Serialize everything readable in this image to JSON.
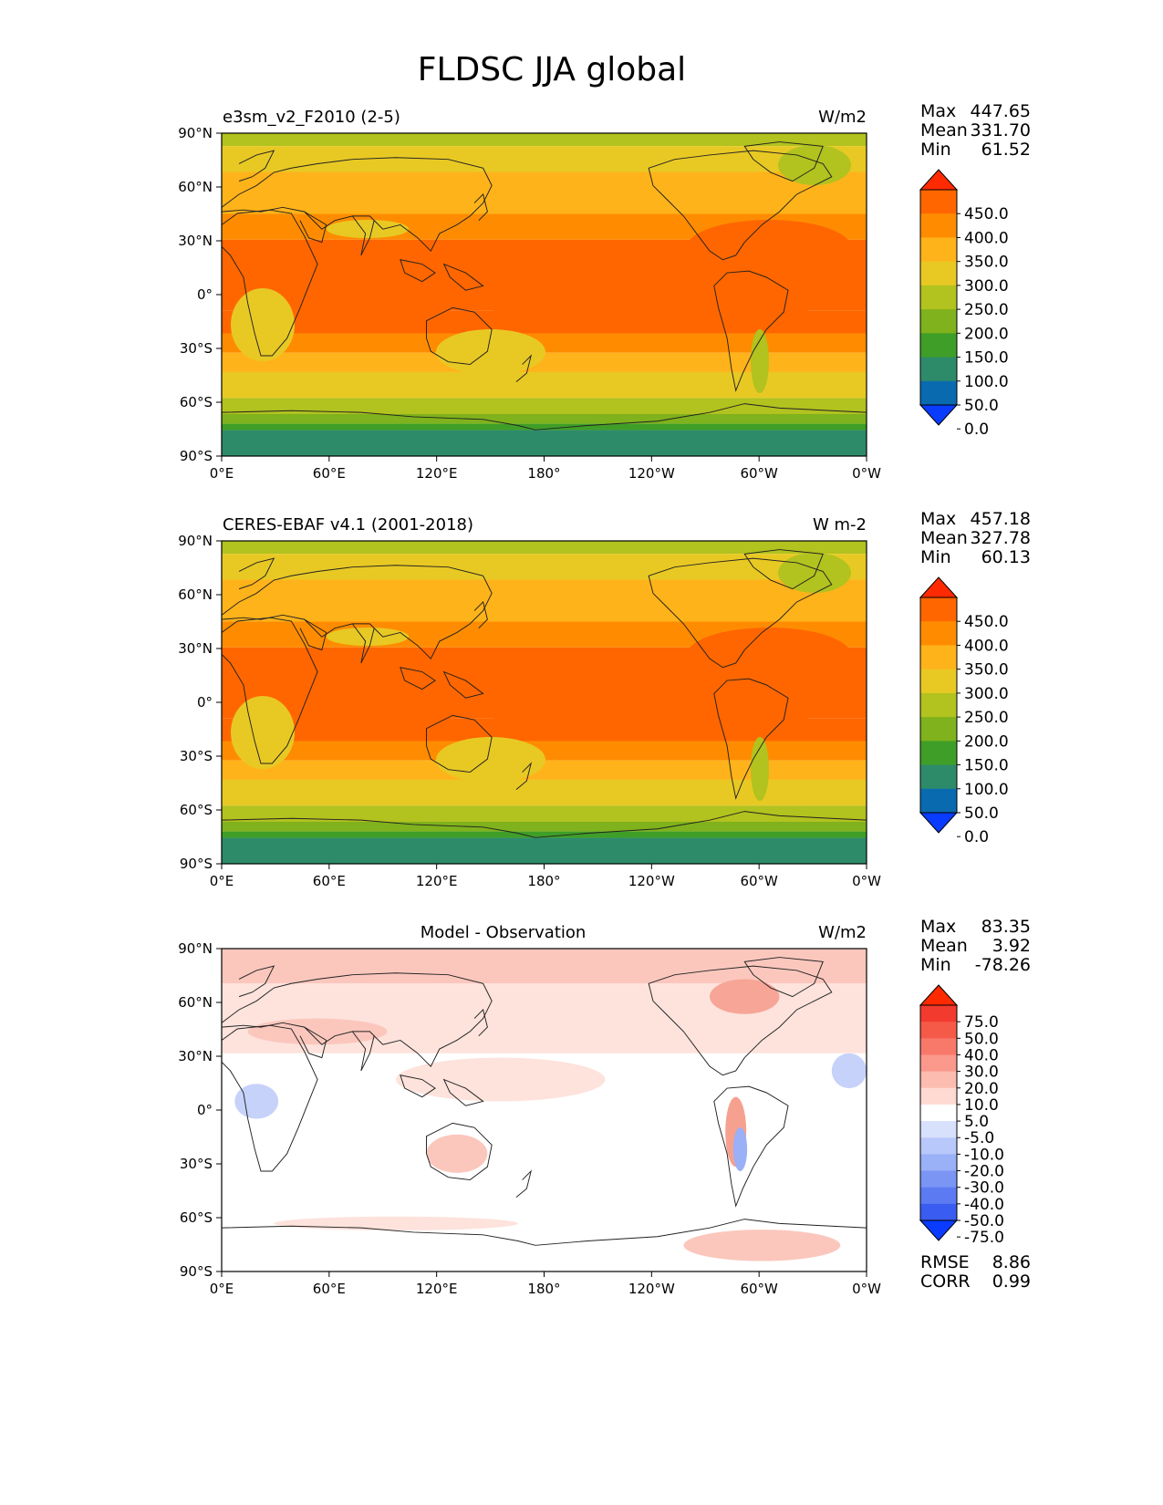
{
  "title": "FLDSC JJA global",
  "x_ticks": [
    "0°E",
    "60°E",
    "120°E",
    "180°",
    "120°W",
    "60°W",
    "0°W"
  ],
  "y_ticks": [
    "90°N",
    "60°N",
    "30°N",
    "0°",
    "30°S",
    "60°S",
    "90°S"
  ],
  "panels": [
    {
      "name": "e3sm_v2_F2010 (2-5)",
      "center_title": "",
      "units": "W/m2",
      "stats": [
        [
          "Max",
          "447.65"
        ],
        [
          "Mean",
          "331.70"
        ],
        [
          "Min",
          "61.52"
        ]
      ],
      "colorbar": {
        "labels": [
          "450.0",
          "400.0",
          "350.0",
          "300.0",
          "250.0",
          "200.0",
          "150.0",
          "100.0",
          "50.0",
          "0.0"
        ],
        "colors": [
          "#ff2a00",
          "#ff6600",
          "#ff8c00",
          "#ffb31a",
          "#e8c924",
          "#b2c21e",
          "#7fb21c",
          "#3f9e27",
          "#2e8b6a",
          "#0a6ab0",
          "#0a3cff"
        ]
      },
      "footer": []
    },
    {
      "name": "CERES-EBAF v4.1 (2001-2018)",
      "center_title": "",
      "units": "W m-2",
      "stats": [
        [
          "Max",
          "457.18"
        ],
        [
          "Mean",
          "327.78"
        ],
        [
          "Min",
          "60.13"
        ]
      ],
      "colorbar": {
        "labels": [
          "450.0",
          "400.0",
          "350.0",
          "300.0",
          "250.0",
          "200.0",
          "150.0",
          "100.0",
          "50.0",
          "0.0"
        ],
        "colors": [
          "#ff2a00",
          "#ff6600",
          "#ff8c00",
          "#ffb31a",
          "#e8c924",
          "#b2c21e",
          "#7fb21c",
          "#3f9e27",
          "#2e8b6a",
          "#0a6ab0",
          "#0a3cff"
        ]
      },
      "footer": []
    },
    {
      "name": "",
      "center_title": "Model - Observation",
      "units": "W/m2",
      "stats": [
        [
          "Max",
          "83.35"
        ],
        [
          "Mean",
          "3.92"
        ],
        [
          "Min",
          "-78.26"
        ]
      ],
      "colorbar": {
        "labels": [
          "75.0",
          "50.0",
          "40.0",
          "30.0",
          "20.0",
          "10.0",
          "5.0",
          "-5.0",
          "-10.0",
          "-20.0",
          "-30.0",
          "-40.0",
          "-50.0",
          "-75.0"
        ],
        "colors": [
          "#ff2a00",
          "#f23a2e",
          "#f55a48",
          "#f8796a",
          "#fa998b",
          "#fcbcb0",
          "#fedad2",
          "#ffffff",
          "#d8e1fb",
          "#b9c8fa",
          "#9ab0f7",
          "#7a95f4",
          "#5c7bf2",
          "#3a5cf0",
          "#0a3cff"
        ]
      },
      "footer": [
        [
          "RMSE",
          "8.86"
        ],
        [
          "CORR",
          "0.99"
        ]
      ]
    }
  ]
}
